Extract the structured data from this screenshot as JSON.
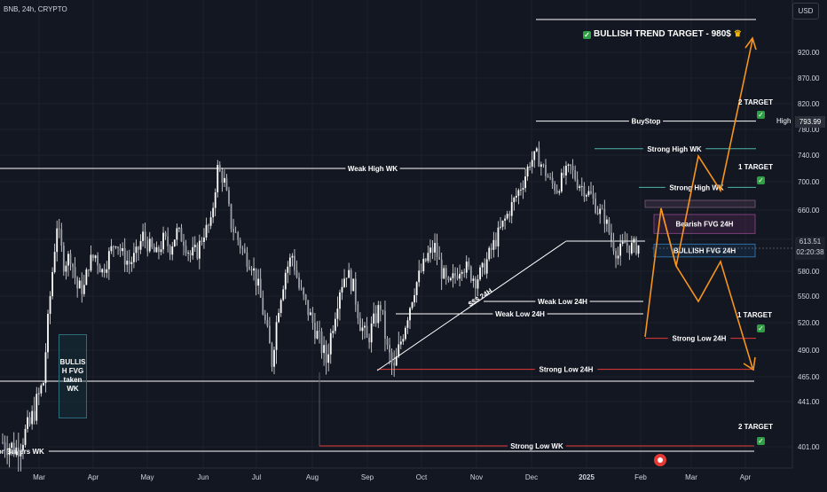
{
  "header": {
    "symbol": "BNB, 24h, CRYPTO",
    "currency": "USD"
  },
  "chart_data": {
    "type": "candlestick",
    "x_ticks": [
      "Mar",
      "Apr",
      "May",
      "Jun",
      "Jul",
      "Aug",
      "Sep",
      "Oct",
      "Nov",
      "Dec",
      "2025",
      "Feb",
      "Mar",
      "Apr"
    ],
    "y_ticks": [
      401.0,
      441.0,
      465.0,
      490.0,
      520.0,
      550.0,
      580.0,
      620.0,
      660.0,
      700.0,
      740.0,
      780.0,
      820.0,
      870.0,
      920.0
    ],
    "ylim": [
      385,
      985
    ],
    "last_price": "613.51",
    "countdown": "02:20:38",
    "high_label": "High",
    "high_value": "793.99",
    "price_path": [
      [
        0,
        405
      ],
      [
        6,
        399
      ],
      [
        12,
        420
      ],
      [
        18,
        460
      ],
      [
        20,
        520
      ],
      [
        22,
        580
      ],
      [
        24,
        640
      ],
      [
        27,
        590
      ],
      [
        30,
        600
      ],
      [
        33,
        560
      ],
      [
        36,
        560
      ],
      [
        38,
        590
      ],
      [
        41,
        600
      ],
      [
        44,
        580
      ],
      [
        47,
        600
      ],
      [
        50,
        620
      ],
      [
        53,
        600
      ],
      [
        56,
        590
      ],
      [
        59,
        600
      ],
      [
        62,
        625
      ],
      [
        65,
        610
      ],
      [
        68,
        600
      ],
      [
        71,
        620
      ],
      [
        74,
        610
      ],
      [
        77,
        630
      ],
      [
        80,
        620
      ],
      [
        83,
        600
      ],
      [
        86,
        605
      ],
      [
        89,
        630
      ],
      [
        92,
        640
      ],
      [
        95,
        720
      ],
      [
        98,
        700
      ],
      [
        101,
        640
      ],
      [
        104,
        620
      ],
      [
        107,
        600
      ],
      [
        110,
        590
      ],
      [
        113,
        560
      ],
      [
        116,
        520
      ],
      [
        119,
        480
      ],
      [
        122,
        540
      ],
      [
        125,
        580
      ],
      [
        128,
        600
      ],
      [
        131,
        560
      ],
      [
        134,
        540
      ],
      [
        137,
        520
      ],
      [
        140,
        500
      ],
      [
        143,
        480
      ],
      [
        146,
        520
      ],
      [
        149,
        560
      ],
      [
        152,
        580
      ],
      [
        155,
        560
      ],
      [
        158,
        520
      ],
      [
        161,
        500
      ],
      [
        164,
        520
      ],
      [
        167,
        540
      ],
      [
        170,
        490
      ],
      [
        173,
        470
      ],
      [
        176,
        500
      ],
      [
        179,
        530
      ],
      [
        182,
        560
      ],
      [
        185,
        580
      ],
      [
        188,
        600
      ],
      [
        191,
        610
      ],
      [
        194,
        580
      ],
      [
        197,
        560
      ],
      [
        200,
        575
      ],
      [
        203,
        590
      ],
      [
        206,
        580
      ],
      [
        209,
        570
      ],
      [
        212,
        580
      ],
      [
        215,
        600
      ],
      [
        218,
        620
      ],
      [
        221,
        640
      ],
      [
        224,
        660
      ],
      [
        227,
        680
      ],
      [
        230,
        700
      ],
      [
        233,
        730
      ],
      [
        236,
        740
      ],
      [
        239,
        720
      ],
      [
        242,
        700
      ],
      [
        245,
        690
      ],
      [
        248,
        710
      ],
      [
        251,
        720
      ],
      [
        254,
        700
      ],
      [
        257,
        690
      ],
      [
        260,
        680
      ],
      [
        263,
        660
      ],
      [
        266,
        650
      ],
      [
        269,
        620
      ],
      [
        272,
        600
      ],
      [
        275,
        615
      ],
      [
        278,
        610
      ],
      [
        282,
        613
      ]
    ],
    "levels": [
      {
        "label": "BuyStop",
        "price": 793
      },
      {
        "label": "Strong High WK",
        "price": 750
      },
      {
        "label": "Weak High WK",
        "price": 720
      },
      {
        "label": "Strong High WK",
        "price": 692
      },
      {
        "label": "Weak Low 24H",
        "price": 544
      },
      {
        "label": "Weak Low 24H",
        "price": 530
      },
      {
        "label": "Strong Low 24H",
        "price": 503
      },
      {
        "label": "Strong Low 24H",
        "price": 472
      },
      {
        "label": "Strong Low WK",
        "price": 402
      },
      {
        "label": "for Buyers WK",
        "price": 399
      }
    ],
    "zones": [
      {
        "label": "Bearish FVG 24H",
        "from": 628,
        "to": 654
      },
      {
        "label": "BULLISH FVG 24H",
        "from": 598,
        "to": 614
      }
    ],
    "annotations": {
      "trend_target": "BULLISH TREND TARGET - 980$",
      "target_2_upper": "2 TARGET",
      "target_1_upper": "1 TARGET",
      "target_1_lower": "1 TARGET",
      "target_2_lower": "2 TARGET",
      "trendline": "$$$ 24H",
      "fvg_box": "BULLIS H FVG taken WK"
    }
  }
}
